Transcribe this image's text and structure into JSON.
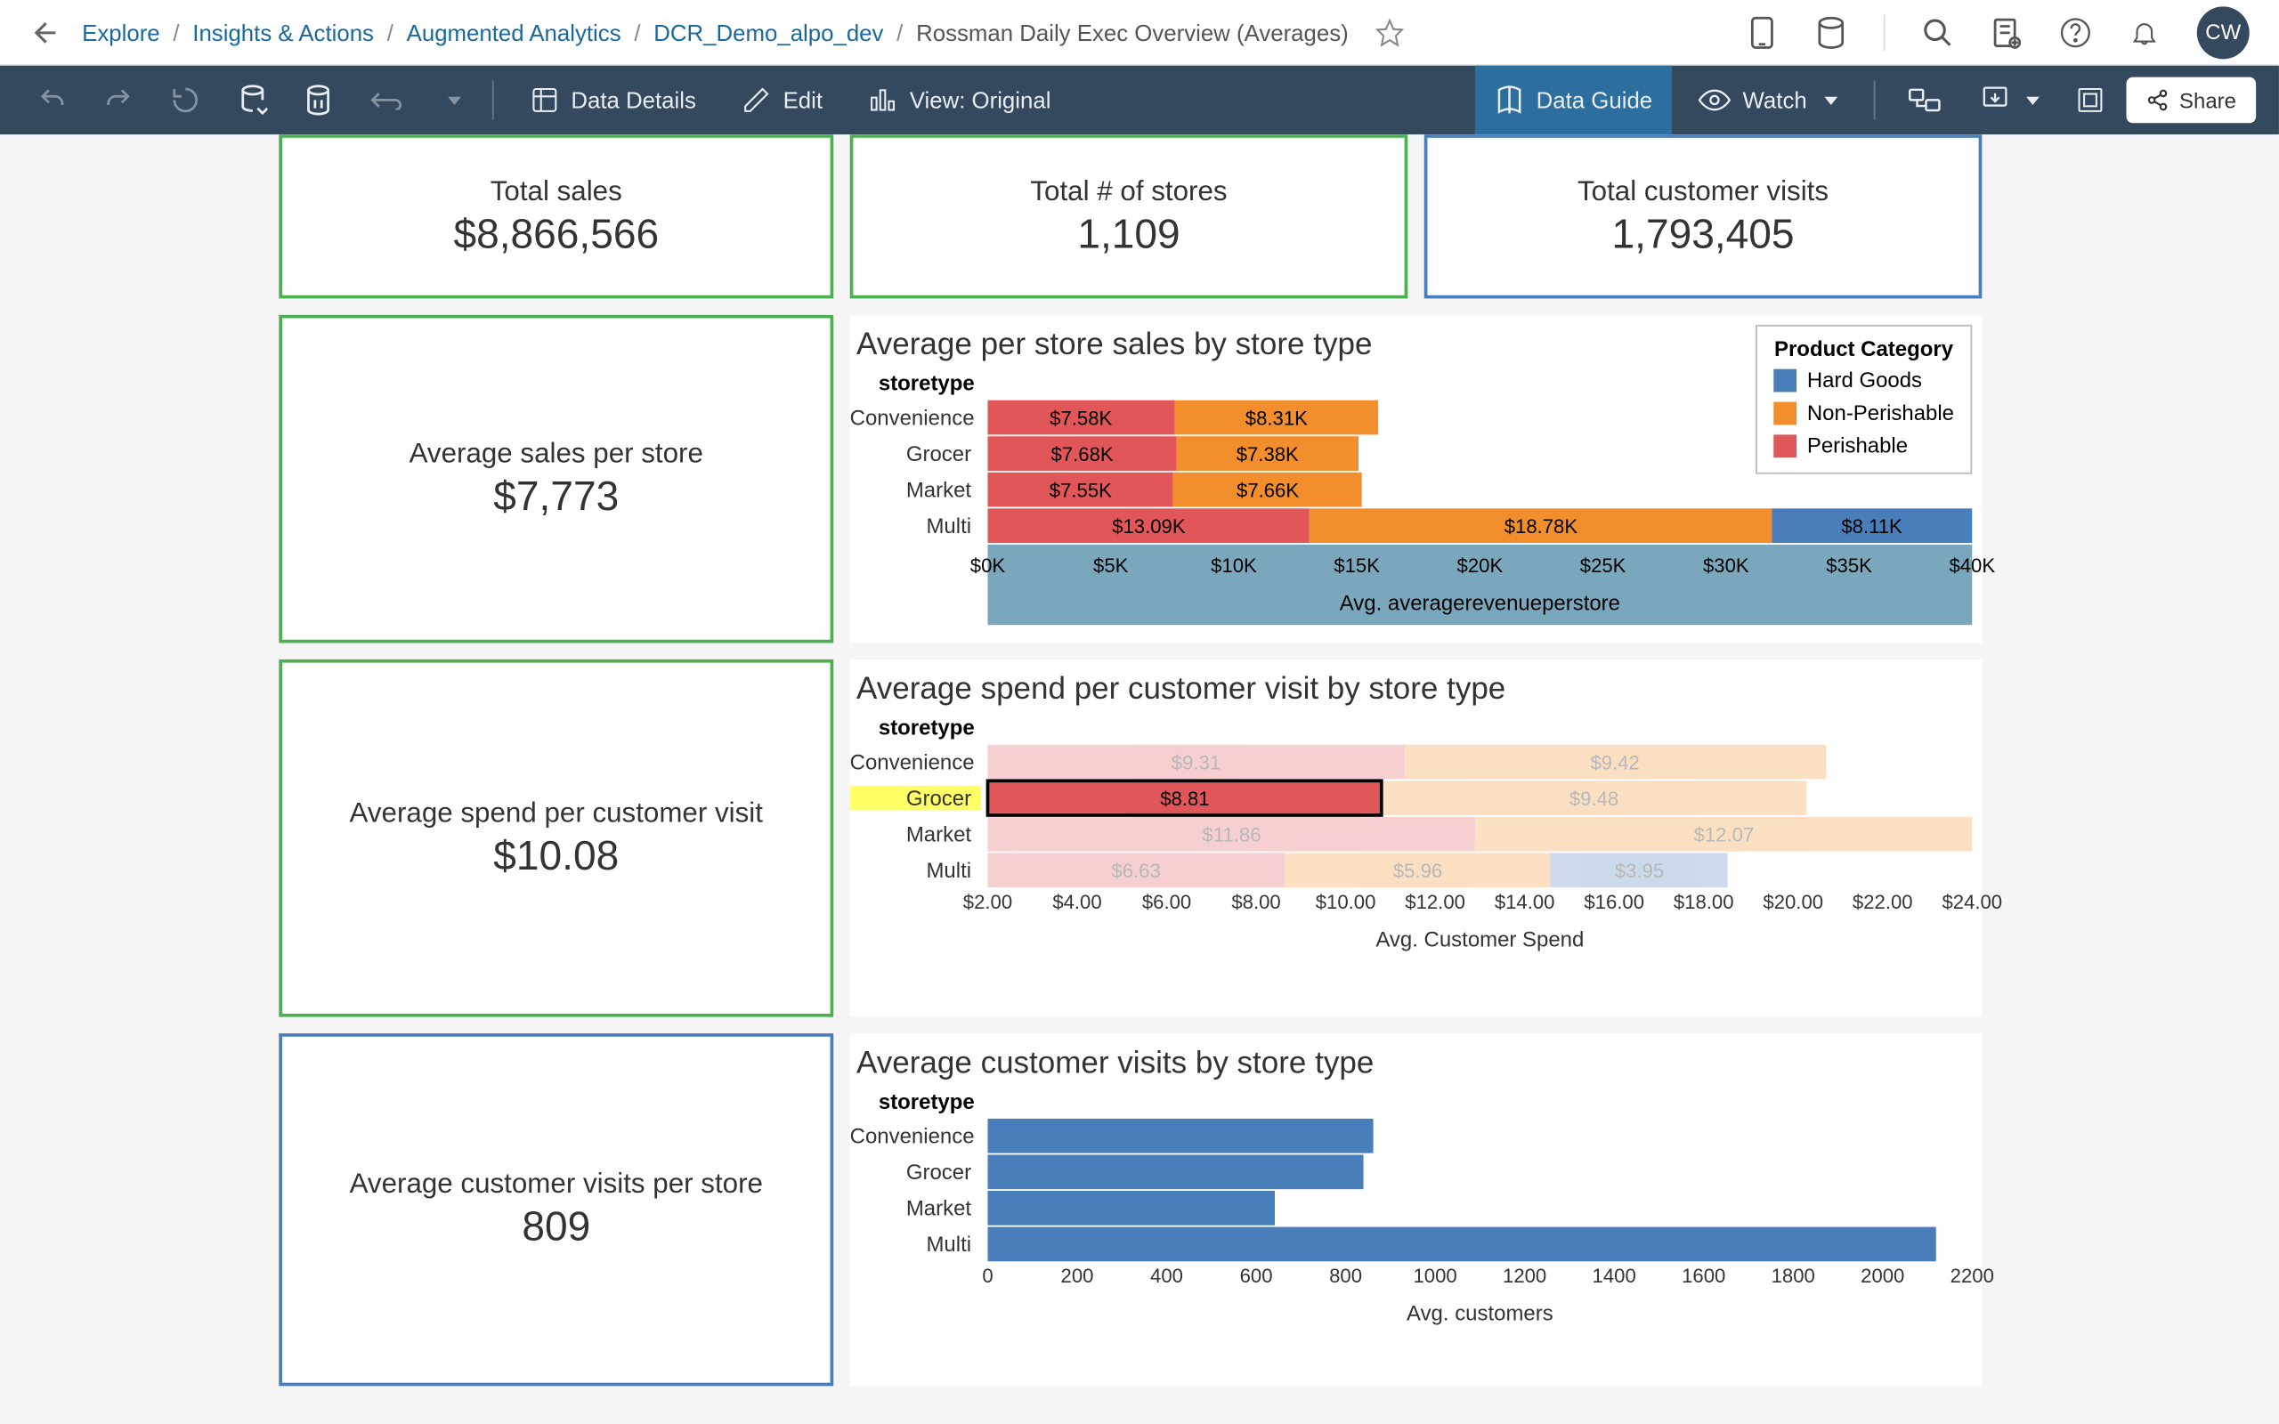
{
  "breadcrumbs": {
    "items": [
      {
        "label": "Explore"
      },
      {
        "label": "Insights & Actions"
      },
      {
        "label": "Augmented Analytics"
      },
      {
        "label": "DCR_Demo_alpo_dev"
      }
    ],
    "current": "Rossman Daily Exec Overview (Averages)"
  },
  "avatar_initials": "CW",
  "toolbar": {
    "data_details": "Data Details",
    "edit": "Edit",
    "view": "View: Original",
    "data_guide": "Data Guide",
    "watch": "Watch",
    "share": "Share"
  },
  "colors": {
    "green_border": "#4caf50",
    "blue_border": "#4a7ebb",
    "hard_goods": "#4a7ebb",
    "non_perishable": "#f28e2b",
    "perishable": "#e15759",
    "visits_bar": "#4a7ebb",
    "axis_band": "#7ba7bd",
    "highlight": "#ffff66"
  },
  "top_kpis": [
    {
      "label": "Total sales",
      "value": "$8,866,566",
      "border": "green"
    },
    {
      "label": "Total # of stores",
      "value": "1,109",
      "border": "green"
    },
    {
      "label": "Total customer visits",
      "value": "1,793,405",
      "border": "blue"
    }
  ],
  "side_kpis": [
    {
      "label": "Average sales per store",
      "value": "$7,773",
      "border": "green",
      "chart": "chart1"
    },
    {
      "label": "Average spend per customer visit",
      "value": "$10.08",
      "border": "green",
      "chart": "chart2"
    },
    {
      "label": "Average customer visits per store",
      "value": "809",
      "border": "blue",
      "chart": "chart3"
    }
  ],
  "legend": {
    "title": "Product Category",
    "items": [
      {
        "label": "Hard Goods",
        "color": "#4a7ebb"
      },
      {
        "label": "Non-Perishable",
        "color": "#f28e2b"
      },
      {
        "label": "Perishable",
        "color": "#e15759"
      }
    ]
  },
  "chart1": {
    "title": "Average per store sales by store type",
    "row_header": "storetype",
    "axis_label": "Avg. averagerevenueperstore",
    "x_max": 40,
    "ticks": [
      {
        "v": 0,
        "l": "$0K"
      },
      {
        "v": 5,
        "l": "$5K"
      },
      {
        "v": 10,
        "l": "$10K"
      },
      {
        "v": 15,
        "l": "$15K"
      },
      {
        "v": 20,
        "l": "$20K"
      },
      {
        "v": 25,
        "l": "$25K"
      },
      {
        "v": 30,
        "l": "$30K"
      },
      {
        "v": 35,
        "l": "$35K"
      },
      {
        "v": 40,
        "l": "$40K"
      }
    ],
    "rows": [
      {
        "label": "Convenience",
        "segs": [
          {
            "color": "perishable",
            "v": 7.58,
            "txt": "$7.58K"
          },
          {
            "color": "non_perishable",
            "v": 8.31,
            "txt": "$8.31K"
          }
        ]
      },
      {
        "label": "Grocer",
        "segs": [
          {
            "color": "perishable",
            "v": 7.68,
            "txt": "$7.68K"
          },
          {
            "color": "non_perishable",
            "v": 7.38,
            "txt": "$7.38K"
          }
        ]
      },
      {
        "label": "Market",
        "segs": [
          {
            "color": "perishable",
            "v": 7.55,
            "txt": "$7.55K"
          },
          {
            "color": "non_perishable",
            "v": 7.66,
            "txt": "$7.66K"
          }
        ]
      },
      {
        "label": "Multi",
        "segs": [
          {
            "color": "perishable",
            "v": 13.09,
            "txt": "$13.09K"
          },
          {
            "color": "non_perishable",
            "v": 18.78,
            "txt": "$18.78K"
          },
          {
            "color": "hard_goods",
            "v": 8.11,
            "txt": "$8.11K"
          }
        ]
      }
    ]
  },
  "chart2": {
    "title": "Average spend per customer visit by store type",
    "row_header": "storetype",
    "axis_label": "Avg. Customer Spend",
    "x_min": 2,
    "x_max": 24,
    "ticks": [
      {
        "v": 2,
        "l": "$2.00"
      },
      {
        "v": 4,
        "l": "$4.00"
      },
      {
        "v": 6,
        "l": "$6.00"
      },
      {
        "v": 8,
        "l": "$8.00"
      },
      {
        "v": 10,
        "l": "$10.00"
      },
      {
        "v": 12,
        "l": "$12.00"
      },
      {
        "v": 14,
        "l": "$14.00"
      },
      {
        "v": 16,
        "l": "$16.00"
      },
      {
        "v": 18,
        "l": "$18.00"
      },
      {
        "v": 20,
        "l": "$20.00"
      },
      {
        "v": 22,
        "l": "$22.00"
      },
      {
        "v": 24,
        "l": "$24.00"
      }
    ],
    "selected_row": "Grocer",
    "rows": [
      {
        "label": "Convenience",
        "segs": [
          {
            "color": "perishable",
            "v": 9.31,
            "txt": "$9.31"
          },
          {
            "color": "non_perishable",
            "v": 9.42,
            "txt": "$9.42"
          }
        ]
      },
      {
        "label": "Grocer",
        "selected": true,
        "segs": [
          {
            "color": "perishable",
            "v": 8.81,
            "txt": "$8.81",
            "outline": true
          },
          {
            "color": "non_perishable",
            "v": 9.48,
            "txt": "$9.48"
          }
        ]
      },
      {
        "label": "Market",
        "segs": [
          {
            "color": "perishable",
            "v": 11.86,
            "txt": "$11.86"
          },
          {
            "color": "non_perishable",
            "v": 12.07,
            "txt": "$12.07"
          }
        ]
      },
      {
        "label": "Multi",
        "segs": [
          {
            "color": "perishable",
            "v": 6.63,
            "txt": "$6.63"
          },
          {
            "color": "non_perishable",
            "v": 5.96,
            "txt": "$5.96"
          },
          {
            "color": "hard_goods",
            "v": 3.95,
            "txt": "$3.95"
          }
        ]
      }
    ]
  },
  "chart3": {
    "title": "Average customer visits by store type",
    "row_header": "storetype",
    "axis_label": "Avg. customers",
    "x_max": 2200,
    "ticks": [
      {
        "v": 0,
        "l": "0"
      },
      {
        "v": 200,
        "l": "200"
      },
      {
        "v": 400,
        "l": "400"
      },
      {
        "v": 600,
        "l": "600"
      },
      {
        "v": 800,
        "l": "800"
      },
      {
        "v": 1000,
        "l": "1000"
      },
      {
        "v": 1200,
        "l": "1200"
      },
      {
        "v": 1400,
        "l": "1400"
      },
      {
        "v": 1600,
        "l": "1600"
      },
      {
        "v": 1800,
        "l": "1800"
      },
      {
        "v": 2000,
        "l": "2000"
      },
      {
        "v": 2200,
        "l": "2200"
      }
    ],
    "rows": [
      {
        "label": "Convenience",
        "v": 860
      },
      {
        "label": "Grocer",
        "v": 840
      },
      {
        "label": "Market",
        "v": 640
      },
      {
        "label": "Multi",
        "v": 2120
      }
    ]
  }
}
